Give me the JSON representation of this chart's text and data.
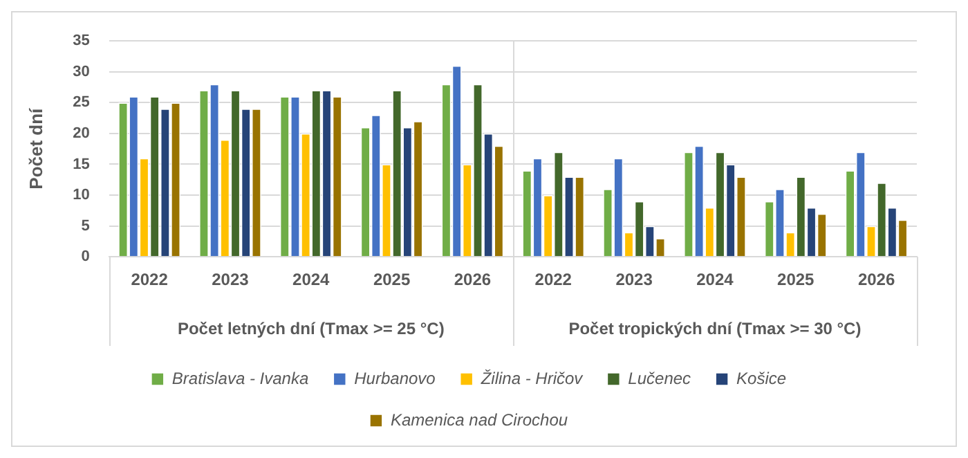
{
  "chart_data": {
    "type": "bar",
    "ylabel": "Počet dní",
    "categories": [
      "2022",
      "2023",
      "2024",
      "2025",
      "2026",
      "2022",
      "2023",
      "2024",
      "2025",
      "2026"
    ],
    "annotations": [
      "Počet letných dní (Tmax >= 25 °C)",
      "Počet tropických dní (Tmax >= 30 °C)"
    ],
    "series": [
      {
        "name": "Bratislava - Ivanka",
        "color": "#70ad47",
        "values": [
          25,
          27,
          26,
          21,
          28,
          14,
          11,
          17,
          9,
          14
        ]
      },
      {
        "name": "Hurbanovo",
        "color": "#4472c4",
        "values": [
          26,
          28,
          26,
          23,
          31,
          16,
          16,
          18,
          11,
          17
        ]
      },
      {
        "name": "Žilina - Hričov",
        "color": "#ffc000",
        "values": [
          16,
          19,
          20,
          15,
          15,
          10,
          4,
          8,
          4,
          5
        ]
      },
      {
        "name": "Lučenec",
        "color": "#43682b",
        "values": [
          26,
          27,
          27,
          27,
          28,
          17,
          9,
          17,
          13,
          12
        ]
      },
      {
        "name": "Košice",
        "color": "#264478",
        "values": [
          24,
          24,
          27,
          21,
          20,
          13,
          5,
          15,
          8,
          8
        ]
      },
      {
        "name": "Kamenica nad Cirochou",
        "color": "#997300",
        "values": [
          25,
          24,
          26,
          22,
          18,
          13,
          3,
          13,
          7,
          6
        ]
      }
    ],
    "ylim": [
      0,
      35
    ],
    "yticks": [
      0,
      5,
      10,
      15,
      20,
      25,
      30,
      35
    ],
    "grid": "y",
    "legend": "bottom"
  }
}
